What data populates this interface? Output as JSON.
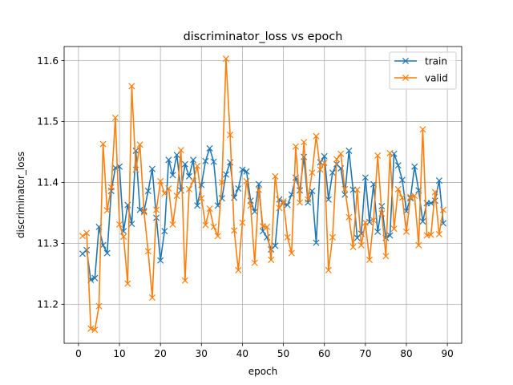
{
  "chart_data": {
    "type": "line",
    "title": "discriminator_loss vs epoch",
    "xlabel": "epoch",
    "ylabel": "discriminator_loss",
    "xlim": [
      -3.5,
      93.5
    ],
    "ylim": [
      11.136,
      11.623
    ],
    "xticks": [
      0,
      10,
      20,
      30,
      40,
      50,
      60,
      70,
      80,
      90
    ],
    "yticks": [
      11.2,
      11.3,
      11.4,
      11.5,
      11.6
    ],
    "ytick_labels": [
      "11.2",
      "11.3",
      "11.4",
      "11.5",
      "11.6"
    ],
    "grid": true,
    "legend_position": "top-right",
    "x": [
      1,
      2,
      3,
      4,
      5,
      6,
      7,
      8,
      9,
      10,
      11,
      12,
      13,
      14,
      15,
      16,
      17,
      18,
      19,
      20,
      21,
      22,
      23,
      24,
      25,
      26,
      27,
      28,
      29,
      30,
      31,
      32,
      33,
      34,
      35,
      36,
      37,
      38,
      39,
      40,
      41,
      42,
      43,
      44,
      45,
      46,
      47,
      48,
      49,
      50,
      51,
      52,
      53,
      54,
      55,
      56,
      57,
      58,
      59,
      60,
      61,
      62,
      63,
      64,
      65,
      66,
      67,
      68,
      69,
      70,
      71,
      72,
      73,
      74,
      75,
      76,
      77,
      78,
      79,
      80,
      81,
      82,
      83,
      84,
      85,
      86,
      87,
      88,
      89
    ],
    "series": [
      {
        "name": "train",
        "color": "#1f77b4",
        "values": [
          11.283,
          11.289,
          11.24,
          11.243,
          11.327,
          11.297,
          11.284,
          11.386,
          11.424,
          11.426,
          11.32,
          11.363,
          11.332,
          11.452,
          11.355,
          11.353,
          11.386,
          11.422,
          11.342,
          11.272,
          11.32,
          11.437,
          11.412,
          11.445,
          11.387,
          11.43,
          11.41,
          11.437,
          11.362,
          11.396,
          11.435,
          11.456,
          11.434,
          11.362,
          11.374,
          11.413,
          11.433,
          11.375,
          11.39,
          11.421,
          11.418,
          11.37,
          11.352,
          11.397,
          11.32,
          11.31,
          11.29,
          11.296,
          11.372,
          11.366,
          11.363,
          11.38,
          11.408,
          11.387,
          11.442,
          11.367,
          11.386,
          11.301,
          11.433,
          11.443,
          11.372,
          11.416,
          11.43,
          11.423,
          11.38,
          11.452,
          11.388,
          11.309,
          11.316,
          11.408,
          11.335,
          11.397,
          11.319,
          11.361,
          11.309,
          11.313,
          11.447,
          11.428,
          11.404,
          11.353,
          11.374,
          11.426,
          11.387,
          11.336,
          11.366,
          11.366,
          11.37,
          11.403,
          11.333
        ]
      },
      {
        "name": "valid",
        "color": "#ff7f0e",
        "values": [
          11.312,
          11.317,
          11.16,
          11.158,
          11.197,
          11.463,
          11.354,
          11.392,
          11.506,
          11.331,
          11.311,
          11.234,
          11.558,
          11.421,
          11.462,
          11.351,
          11.287,
          11.211,
          11.355,
          11.402,
          11.382,
          11.39,
          11.331,
          11.378,
          11.453,
          11.239,
          11.389,
          11.402,
          11.427,
          11.374,
          11.33,
          11.357,
          11.327,
          11.312,
          11.4,
          11.603,
          11.478,
          11.321,
          11.256,
          11.334,
          11.402,
          11.362,
          11.268,
          11.388,
          11.328,
          11.327,
          11.273,
          11.41,
          11.358,
          11.369,
          11.31,
          11.284,
          11.459,
          11.367,
          11.466,
          11.372,
          11.416,
          11.476,
          11.421,
          11.432,
          11.256,
          11.31,
          11.438,
          11.447,
          11.389,
          11.343,
          11.294,
          11.388,
          11.297,
          11.334,
          11.273,
          11.338,
          11.444,
          11.349,
          11.279,
          11.448,
          11.324,
          11.389,
          11.375,
          11.319,
          11.376,
          11.378,
          11.297,
          11.487,
          11.313,
          11.314,
          11.384,
          11.315,
          11.355
        ]
      }
    ]
  }
}
